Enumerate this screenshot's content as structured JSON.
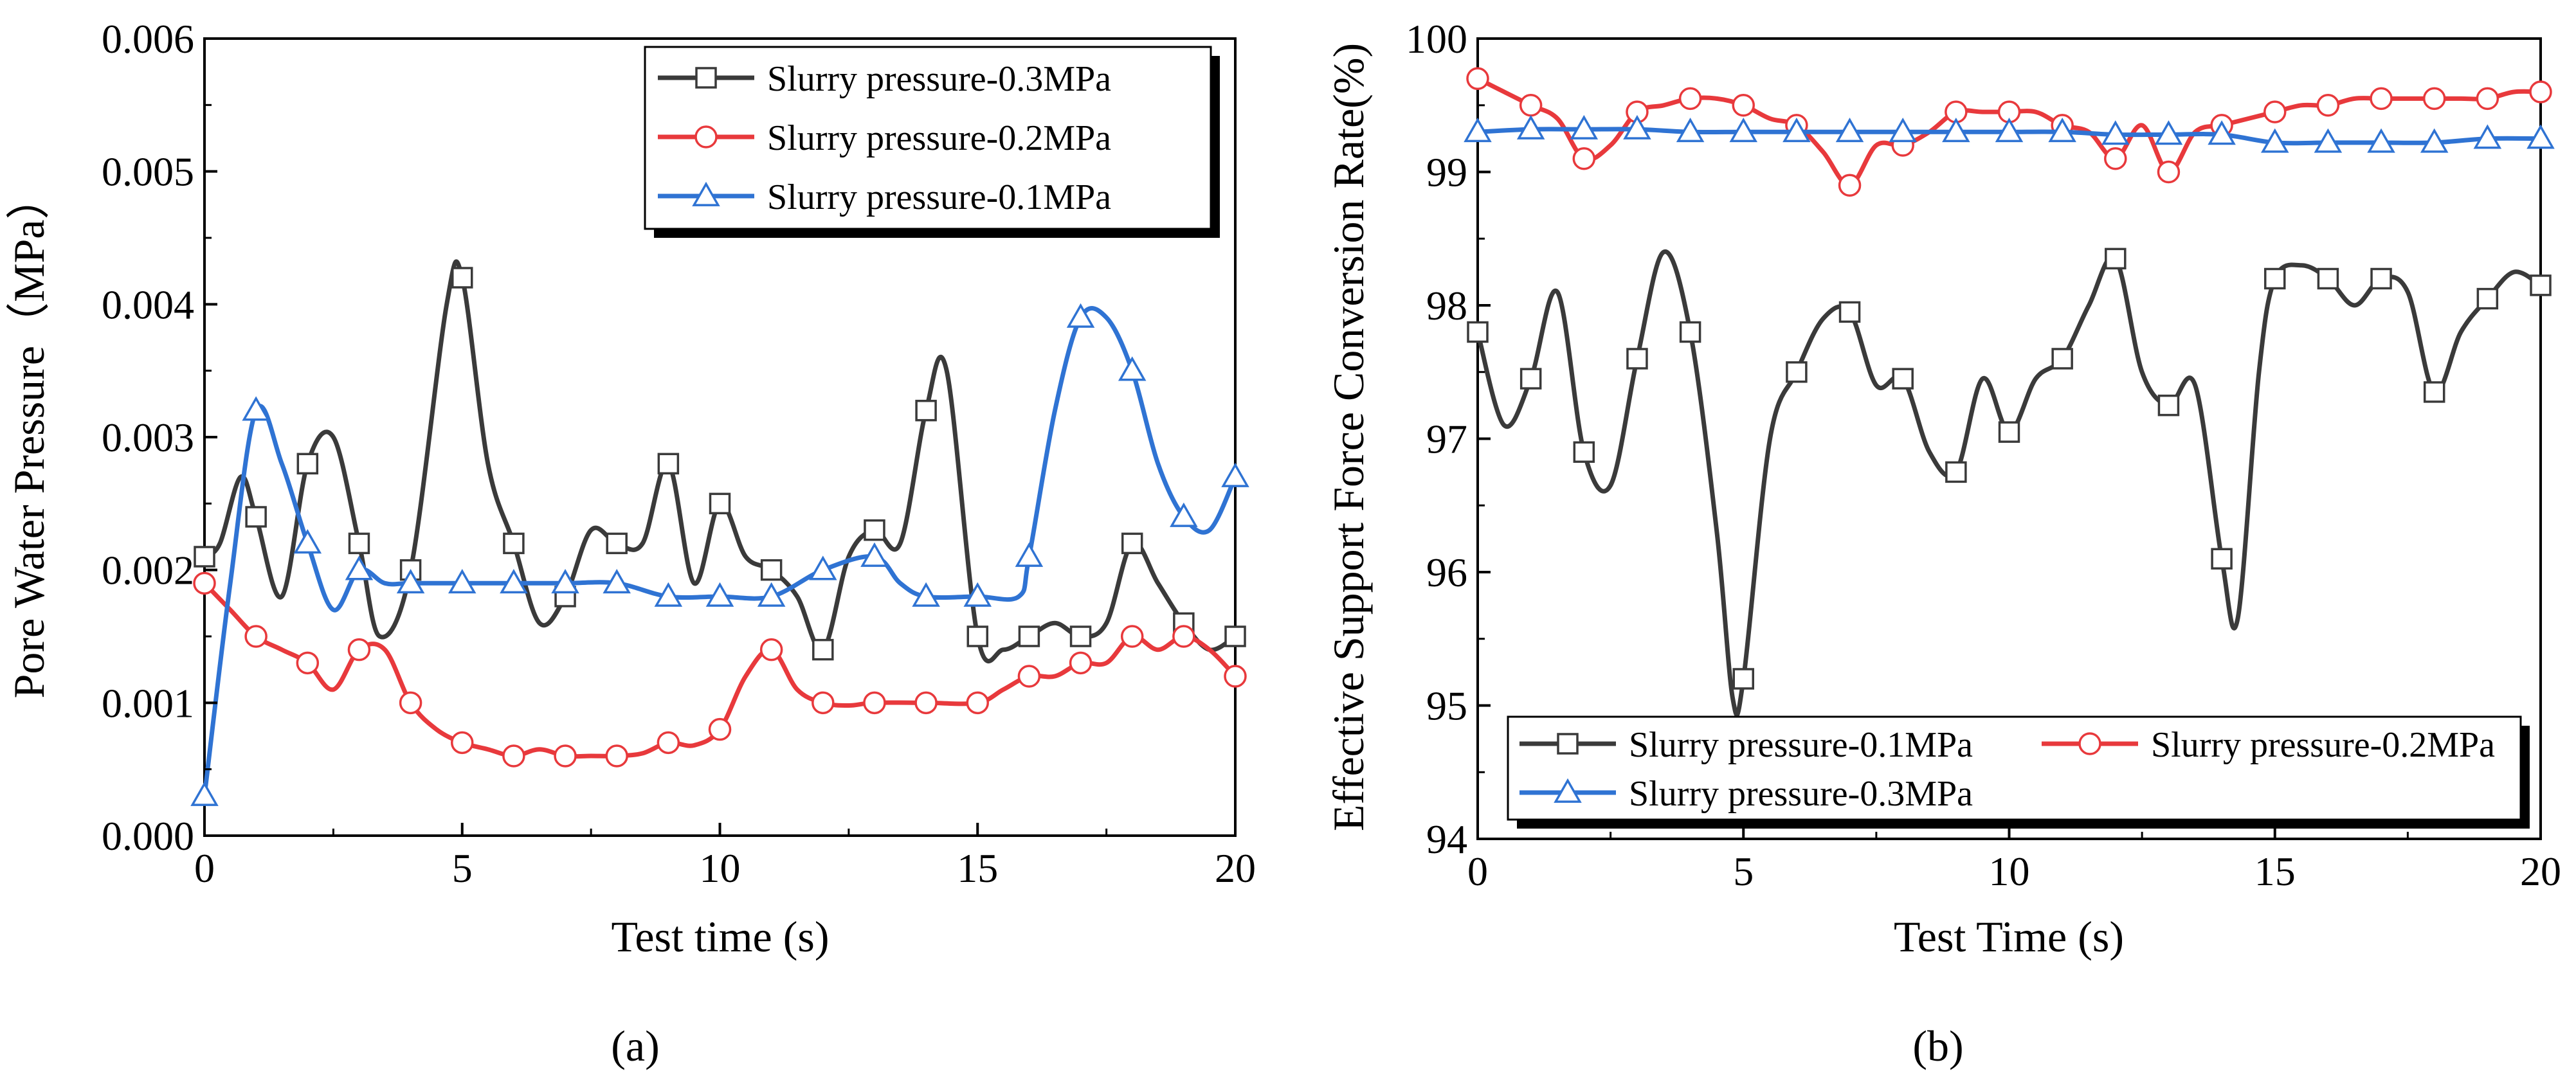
{
  "chart_data": [
    {
      "type": "line",
      "panel_label": "(a)",
      "xlabel": "Test time (s)",
      "ylabel": "Pore Water Pressure（MPa）",
      "xlim": [
        0,
        20
      ],
      "ylim": [
        0,
        0.006
      ],
      "xticks": [
        "0",
        "5",
        "10",
        "15",
        "20"
      ],
      "yticks": [
        "0.000",
        "0.001",
        "0.002",
        "0.003",
        "0.004",
        "0.005",
        "0.006"
      ],
      "legend_position": "top-right",
      "series": [
        {
          "name": "Slurry pressure-0.3MPa",
          "color": "#3a3a3a",
          "marker": "square",
          "points": [
            [
              0,
              0.0021
            ],
            [
              0.3,
              0.0022
            ],
            [
              0.7,
              0.0027
            ],
            [
              1.0,
              0.0024
            ],
            [
              1.5,
              0.0018
            ],
            [
              2.0,
              0.0028
            ],
            [
              2.5,
              0.003
            ],
            [
              3.0,
              0.0022
            ],
            [
              3.4,
              0.0015
            ],
            [
              4.0,
              0.002
            ],
            [
              4.7,
              0.004
            ],
            [
              5.0,
              0.0042
            ],
            [
              5.5,
              0.0028
            ],
            [
              6.0,
              0.0022
            ],
            [
              6.5,
              0.0016
            ],
            [
              7.0,
              0.0018
            ],
            [
              7.5,
              0.0023
            ],
            [
              8.0,
              0.0022
            ],
            [
              8.5,
              0.0022
            ],
            [
              9.0,
              0.0028
            ],
            [
              9.5,
              0.0019
            ],
            [
              10.0,
              0.0025
            ],
            [
              10.5,
              0.0021
            ],
            [
              11.0,
              0.002
            ],
            [
              11.5,
              0.0018
            ],
            [
              12.0,
              0.0014
            ],
            [
              12.5,
              0.0021
            ],
            [
              13.0,
              0.0023
            ],
            [
              13.5,
              0.0022
            ],
            [
              14.0,
              0.0032
            ],
            [
              14.4,
              0.0035
            ],
            [
              15.0,
              0.0015
            ],
            [
              15.5,
              0.0014
            ],
            [
              16.0,
              0.0015
            ],
            [
              16.5,
              0.0016
            ],
            [
              17.0,
              0.0015
            ],
            [
              17.5,
              0.0016
            ],
            [
              18.0,
              0.0022
            ],
            [
              18.5,
              0.0019
            ],
            [
              19.0,
              0.0016
            ],
            [
              19.5,
              0.0014
            ],
            [
              20.0,
              0.0015
            ]
          ],
          "marker_x": [
            0,
            1,
            2,
            3,
            4,
            5,
            6,
            7,
            8,
            9,
            10,
            11,
            12,
            13,
            14,
            15,
            16,
            17,
            18,
            19,
            20
          ]
        },
        {
          "name": "Slurry pressure-0.2MPa",
          "color": "#e8393c",
          "marker": "circle",
          "points": [
            [
              0,
              0.0019
            ],
            [
              0.5,
              0.0017
            ],
            [
              1.0,
              0.0015
            ],
            [
              1.5,
              0.0014
            ],
            [
              2.0,
              0.0013
            ],
            [
              2.5,
              0.0011
            ],
            [
              3.0,
              0.0014
            ],
            [
              3.5,
              0.0014
            ],
            [
              4.0,
              0.001
            ],
            [
              4.5,
              0.0008
            ],
            [
              5.0,
              0.0007
            ],
            [
              5.5,
              0.00065
            ],
            [
              6.0,
              0.0006
            ],
            [
              6.5,
              0.00065
            ],
            [
              7.0,
              0.0006
            ],
            [
              7.5,
              0.0006
            ],
            [
              8.0,
              0.0006
            ],
            [
              8.5,
              0.00062
            ],
            [
              9.0,
              0.0007
            ],
            [
              9.5,
              0.00068
            ],
            [
              10.0,
              0.0008
            ],
            [
              10.5,
              0.0012
            ],
            [
              11.0,
              0.0014
            ],
            [
              11.5,
              0.0011
            ],
            [
              12.0,
              0.001
            ],
            [
              12.5,
              0.00098
            ],
            [
              13.0,
              0.001
            ],
            [
              14.0,
              0.001
            ],
            [
              15.0,
              0.001
            ],
            [
              15.5,
              0.0011
            ],
            [
              16.0,
              0.0012
            ],
            [
              16.5,
              0.0012
            ],
            [
              17.0,
              0.0013
            ],
            [
              17.5,
              0.0013
            ],
            [
              18.0,
              0.0015
            ],
            [
              18.5,
              0.0014
            ],
            [
              19.0,
              0.0015
            ],
            [
              19.5,
              0.0014
            ],
            [
              20.0,
              0.0012
            ]
          ],
          "marker_x": [
            0,
            1,
            2,
            3,
            4,
            5,
            6,
            7,
            8,
            9,
            10,
            11,
            12,
            13,
            14,
            15,
            16,
            17,
            18,
            19,
            20
          ]
        },
        {
          "name": "Slurry pressure-0.1MPa",
          "color": "#2f73d3",
          "marker": "triangle",
          "points": [
            [
              0,
              0.0003
            ],
            [
              0.5,
              0.0019
            ],
            [
              1.0,
              0.0032
            ],
            [
              1.5,
              0.0028
            ],
            [
              2.0,
              0.0022
            ],
            [
              2.5,
              0.0017
            ],
            [
              3.0,
              0.002
            ],
            [
              3.5,
              0.0019
            ],
            [
              4.0,
              0.0019
            ],
            [
              5.0,
              0.0019
            ],
            [
              6.0,
              0.0019
            ],
            [
              7.0,
              0.0019
            ],
            [
              8.0,
              0.0019
            ],
            [
              9.0,
              0.0018
            ],
            [
              10.0,
              0.0018
            ],
            [
              11.0,
              0.0018
            ],
            [
              12.0,
              0.002
            ],
            [
              13.0,
              0.0021
            ],
            [
              13.5,
              0.0019
            ],
            [
              14.0,
              0.0018
            ],
            [
              15.0,
              0.0018
            ],
            [
              15.8,
              0.0018
            ],
            [
              16.0,
              0.0021
            ],
            [
              16.5,
              0.0032
            ],
            [
              17.0,
              0.0039
            ],
            [
              17.5,
              0.0039
            ],
            [
              18.0,
              0.0035
            ],
            [
              18.5,
              0.0028
            ],
            [
              19.0,
              0.0024
            ],
            [
              19.5,
              0.0023
            ],
            [
              20.0,
              0.0027
            ]
          ],
          "marker_x": [
            0,
            1,
            2,
            3,
            4,
            5,
            6,
            7,
            8,
            9,
            10,
            11,
            12,
            13,
            14,
            15,
            16,
            17,
            18,
            19,
            20
          ]
        }
      ]
    },
    {
      "type": "line",
      "panel_label": "(b)",
      "xlabel": "Test Time (s)",
      "ylabel": "Effective Support Force Conversion Rate(%)",
      "xlim": [
        0,
        20
      ],
      "ylim": [
        94,
        100
      ],
      "xticks": [
        "0",
        "5",
        "10",
        "15",
        "20"
      ],
      "yticks": [
        "94",
        "95",
        "96",
        "97",
        "98",
        "99",
        "100"
      ],
      "legend_position": "bottom",
      "series": [
        {
          "name": "Slurry pressure-0.1MPa",
          "color": "#3a3a3a",
          "marker": "square",
          "points": [
            [
              0,
              97.8
            ],
            [
              0.5,
              97.1
            ],
            [
              1.0,
              97.45
            ],
            [
              1.5,
              98.1
            ],
            [
              2.0,
              96.9
            ],
            [
              2.5,
              96.65
            ],
            [
              3.0,
              97.6
            ],
            [
              3.5,
              98.4
            ],
            [
              4.0,
              97.8
            ],
            [
              4.5,
              96.3
            ],
            [
              4.8,
              95.05
            ],
            [
              5.0,
              95.2
            ],
            [
              5.5,
              97.0
            ],
            [
              6.0,
              97.5
            ],
            [
              6.5,
              97.9
            ],
            [
              7.0,
              97.95
            ],
            [
              7.5,
              97.4
            ],
            [
              8.0,
              97.45
            ],
            [
              8.5,
              96.9
            ],
            [
              9.0,
              96.75
            ],
            [
              9.5,
              97.45
            ],
            [
              10.0,
              97.05
            ],
            [
              10.5,
              97.45
            ],
            [
              11.0,
              97.6
            ],
            [
              11.5,
              98.0
            ],
            [
              12.0,
              98.35
            ],
            [
              12.5,
              97.5
            ],
            [
              13.0,
              97.25
            ],
            [
              13.5,
              97.4
            ],
            [
              14.0,
              96.1
            ],
            [
              14.3,
              95.65
            ],
            [
              14.7,
              97.5
            ],
            [
              15.0,
              98.2
            ],
            [
              15.5,
              98.3
            ],
            [
              16.0,
              98.2
            ],
            [
              16.5,
              98.0
            ],
            [
              17.0,
              98.2
            ],
            [
              17.5,
              98.1
            ],
            [
              18.0,
              97.35
            ],
            [
              18.5,
              97.8
            ],
            [
              19.0,
              98.05
            ],
            [
              19.5,
              98.25
            ],
            [
              20.0,
              98.15
            ]
          ],
          "marker_x": [
            0,
            1,
            2,
            3,
            4,
            5,
            6,
            7,
            8,
            9,
            10,
            11,
            12,
            13,
            14,
            15,
            16,
            17,
            18,
            19,
            20
          ]
        },
        {
          "name": "Slurry pressure-0.2MPa",
          "color": "#e8393c",
          "marker": "circle",
          "points": [
            [
              0,
              99.7
            ],
            [
              0.5,
              99.6
            ],
            [
              1.0,
              99.5
            ],
            [
              1.5,
              99.4
            ],
            [
              2.0,
              99.1
            ],
            [
              2.5,
              99.2
            ],
            [
              3.0,
              99.45
            ],
            [
              3.5,
              99.5
            ],
            [
              4.0,
              99.55
            ],
            [
              4.5,
              99.55
            ],
            [
              5.0,
              99.5
            ],
            [
              5.5,
              99.4
            ],
            [
              6.0,
              99.35
            ],
            [
              6.5,
              99.15
            ],
            [
              7.0,
              98.9
            ],
            [
              7.5,
              99.2
            ],
            [
              8.0,
              99.2
            ],
            [
              8.5,
              99.3
            ],
            [
              9.0,
              99.45
            ],
            [
              9.5,
              99.45
            ],
            [
              10.0,
              99.45
            ],
            [
              10.5,
              99.45
            ],
            [
              11.0,
              99.35
            ],
            [
              11.5,
              99.3
            ],
            [
              12.0,
              99.1
            ],
            [
              12.5,
              99.35
            ],
            [
              13.0,
              99.0
            ],
            [
              13.5,
              99.3
            ],
            [
              14.0,
              99.35
            ],
            [
              14.5,
              99.4
            ],
            [
              15.0,
              99.45
            ],
            [
              15.5,
              99.5
            ],
            [
              16.0,
              99.5
            ],
            [
              16.5,
              99.55
            ],
            [
              17.0,
              99.55
            ],
            [
              17.5,
              99.55
            ],
            [
              18.0,
              99.55
            ],
            [
              18.5,
              99.55
            ],
            [
              19.0,
              99.55
            ],
            [
              19.5,
              99.6
            ],
            [
              20.0,
              99.6
            ]
          ],
          "marker_x": [
            0,
            1,
            2,
            3,
            4,
            5,
            6,
            7,
            8,
            9,
            10,
            11,
            12,
            13,
            14,
            15,
            16,
            17,
            18,
            19,
            20
          ]
        },
        {
          "name": "Slurry pressure-0.3MPa",
          "color": "#2f73d3",
          "marker": "triangle",
          "points": [
            [
              0,
              99.3
            ],
            [
              1.0,
              99.32
            ],
            [
              2.0,
              99.32
            ],
            [
              3.0,
              99.32
            ],
            [
              4.0,
              99.3
            ],
            [
              5.0,
              99.3
            ],
            [
              6.0,
              99.3
            ],
            [
              7.0,
              99.3
            ],
            [
              8.0,
              99.3
            ],
            [
              9.0,
              99.3
            ],
            [
              10.0,
              99.3
            ],
            [
              11.0,
              99.3
            ],
            [
              12.0,
              99.28
            ],
            [
              13.0,
              99.28
            ],
            [
              14.0,
              99.28
            ],
            [
              15.0,
              99.22
            ],
            [
              16.0,
              99.22
            ],
            [
              17.0,
              99.22
            ],
            [
              18.0,
              99.22
            ],
            [
              19.0,
              99.25
            ],
            [
              20.0,
              99.25
            ]
          ],
          "marker_x": [
            0,
            1,
            2,
            3,
            4,
            5,
            6,
            7,
            8,
            9,
            10,
            11,
            12,
            13,
            14,
            15,
            16,
            17,
            18,
            19,
            20
          ]
        }
      ]
    }
  ]
}
